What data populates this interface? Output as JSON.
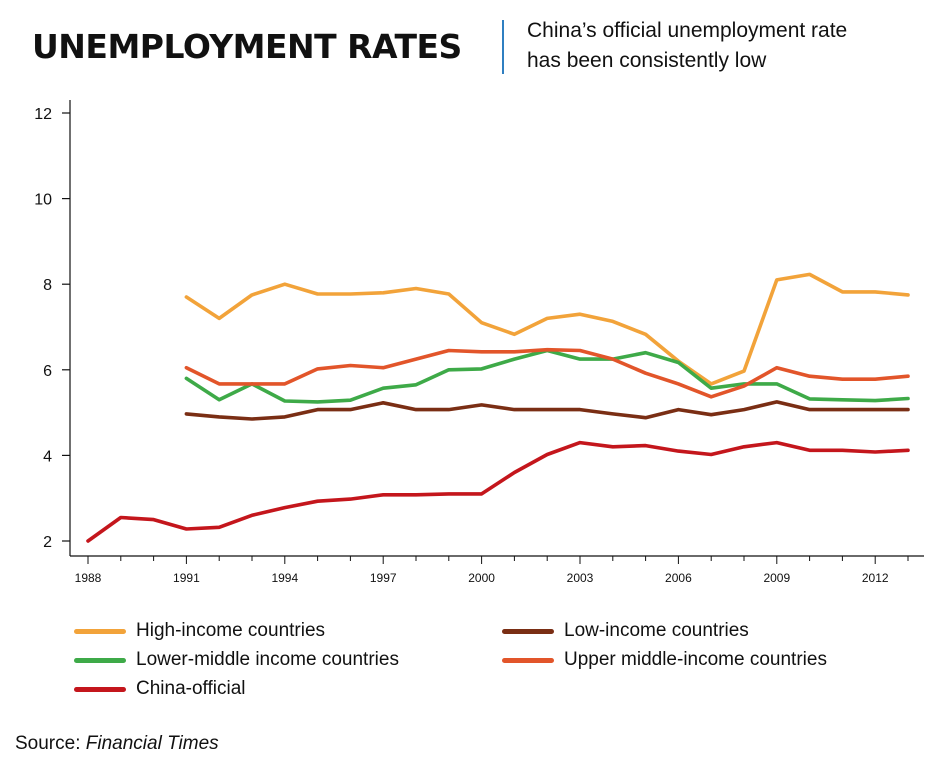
{
  "header": {
    "title": "UNEMPLOYMENT RATES",
    "subtitle_line1": "China’s official unemployment rate",
    "subtitle_line2": "has been consistently low"
  },
  "source": {
    "label": "Source: ",
    "name": "Financial Times"
  },
  "chart_data": {
    "type": "line",
    "title": "UNEMPLOYMENT RATES",
    "subtitle": "China’s official unemployment rate has been consistently low",
    "xlabel": "",
    "ylabel": "",
    "xlim": [
      1988,
      2013
    ],
    "ylim": [
      2,
      12
    ],
    "x_ticks": [
      1988,
      1991,
      1994,
      1997,
      2000,
      2003,
      2006,
      2009,
      2012
    ],
    "y_ticks": [
      2,
      4,
      6,
      8,
      10,
      12
    ],
    "grid": false,
    "legend_position": "bottom",
    "series": [
      {
        "name": "High-income countries",
        "color": "#f2a33a",
        "x": [
          1991,
          1992,
          1993,
          1994,
          1995,
          1996,
          1997,
          1998,
          1999,
          2000,
          2001,
          2002,
          2003,
          2004,
          2005,
          2006,
          2007,
          2008,
          2009,
          2010,
          2011,
          2012,
          2013
        ],
        "values": [
          7.7,
          7.2,
          7.75,
          8.0,
          7.77,
          7.77,
          7.8,
          7.9,
          7.77,
          7.1,
          6.83,
          7.2,
          7.3,
          7.13,
          6.83,
          6.2,
          5.67,
          5.97,
          8.1,
          8.23,
          7.82,
          7.82,
          7.75
        ]
      },
      {
        "name": "Low-income countries",
        "color": "#7a2e14",
        "x": [
          1991,
          1992,
          1993,
          1994,
          1995,
          1996,
          1997,
          1998,
          1999,
          2000,
          2001,
          2002,
          2003,
          2004,
          2005,
          2006,
          2007,
          2008,
          2009,
          2010,
          2011,
          2012,
          2013
        ],
        "values": [
          4.97,
          4.9,
          4.85,
          4.9,
          5.07,
          5.07,
          5.23,
          5.07,
          5.07,
          5.18,
          5.07,
          5.07,
          5.07,
          4.97,
          4.88,
          5.07,
          4.95,
          5.07,
          5.25,
          5.07,
          5.07,
          5.07,
          5.07
        ]
      },
      {
        "name": "Lower-middle income countries",
        "color": "#3eaa48",
        "x": [
          1991,
          1992,
          1993,
          1994,
          1995,
          1996,
          1997,
          1998,
          1999,
          2000,
          2001,
          2002,
          2003,
          2004,
          2005,
          2006,
          2007,
          2008,
          2009,
          2010,
          2011,
          2012,
          2013
        ],
        "values": [
          5.8,
          5.3,
          5.67,
          5.27,
          5.25,
          5.29,
          5.57,
          5.65,
          6.0,
          6.02,
          6.25,
          6.45,
          6.25,
          6.25,
          6.4,
          6.17,
          5.57,
          5.67,
          5.67,
          5.32,
          5.3,
          5.28,
          5.33
        ]
      },
      {
        "name": "Upper middle-income countries",
        "color": "#e2552a",
        "x": [
          1991,
          1992,
          1993,
          1994,
          1995,
          1996,
          1997,
          1998,
          1999,
          2000,
          2001,
          2002,
          2003,
          2004,
          2005,
          2006,
          2007,
          2008,
          2009,
          2010,
          2011,
          2012,
          2013
        ],
        "values": [
          6.05,
          5.67,
          5.67,
          5.67,
          6.02,
          6.1,
          6.05,
          6.25,
          6.45,
          6.42,
          6.42,
          6.47,
          6.45,
          6.25,
          5.92,
          5.67,
          5.37,
          5.62,
          6.05,
          5.85,
          5.78,
          5.78,
          5.85
        ]
      },
      {
        "name": "China-official",
        "color": "#c4161c",
        "x": [
          1988,
          1989,
          1990,
          1991,
          1992,
          1993,
          1994,
          1995,
          1996,
          1997,
          1998,
          1999,
          2000,
          2001,
          2002,
          2003,
          2004,
          2005,
          2006,
          2007,
          2008,
          2009,
          2010,
          2011,
          2012,
          2013
        ],
        "values": [
          2.0,
          2.55,
          2.5,
          2.28,
          2.32,
          2.6,
          2.78,
          2.93,
          2.98,
          3.08,
          3.08,
          3.1,
          3.1,
          3.6,
          4.02,
          4.3,
          4.2,
          4.23,
          4.1,
          4.02,
          4.2,
          4.3,
          4.12,
          4.12,
          4.08,
          4.12
        ]
      }
    ]
  }
}
